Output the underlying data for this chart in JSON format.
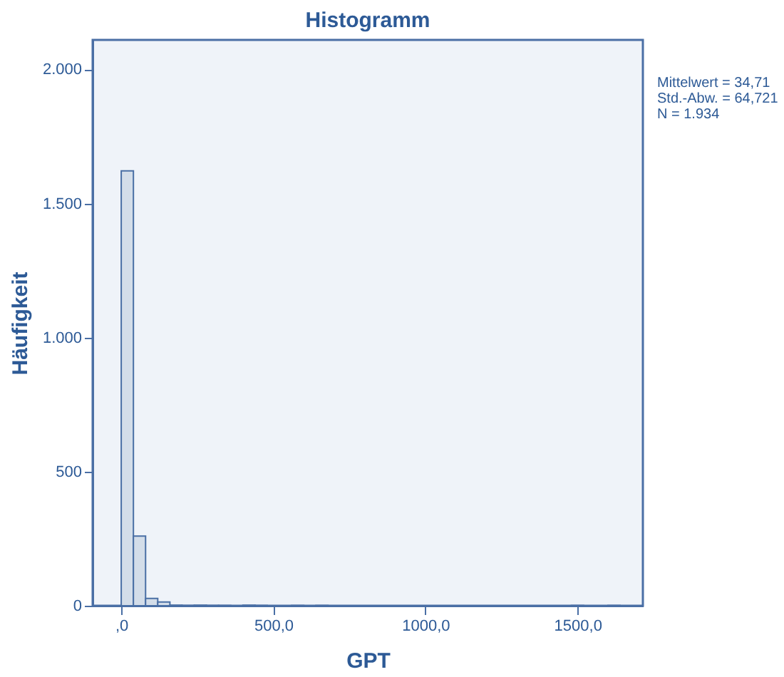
{
  "chart_data": {
    "type": "histogram",
    "title": "Histogramm",
    "xlabel": "GPT",
    "ylabel": "Häufigkeit",
    "bins": [
      0,
      40,
      80,
      120,
      160,
      200,
      240,
      280,
      320,
      360,
      400,
      440,
      480,
      520,
      560,
      600,
      640,
      680,
      720,
      760,
      800,
      840,
      880,
      920,
      960,
      1000,
      1040,
      1080,
      1120,
      1160,
      1200,
      1240,
      1280,
      1320,
      1360,
      1400,
      1440,
      1480,
      1520,
      1560,
      1600,
      1640
    ],
    "values": [
      1622,
      260,
      27,
      14,
      2,
      1,
      2,
      1,
      1,
      0,
      2,
      1,
      0,
      0,
      1,
      0,
      1,
      0,
      0,
      0,
      0,
      0,
      0,
      0,
      0,
      0,
      0,
      0,
      0,
      0,
      0,
      0,
      0,
      0,
      0,
      0,
      0,
      1,
      0,
      0,
      1
    ],
    "color": "#d3dde9",
    "xlim": [
      -94,
      1715
    ],
    "xticks": [
      {
        "value": 0,
        "label": ",0"
      },
      {
        "value": 500,
        "label": "500,0"
      },
      {
        "value": 1000,
        "label": "1000,0"
      },
      {
        "value": 1500,
        "label": "1500,0"
      }
    ],
    "ylim": [
      0,
      2110
    ],
    "yticks": [
      {
        "value": 0,
        "label": "0"
      },
      {
        "value": 500,
        "label": "500"
      },
      {
        "value": 1000,
        "label": "1.000"
      },
      {
        "value": 1500,
        "label": "1.500"
      },
      {
        "value": 2000,
        "label": "2.000"
      }
    ],
    "grid": false,
    "annotations": [
      "Mittelwert = 34,71",
      "Std.-Abw. =  64,721",
      "N = 1.934"
    ]
  }
}
